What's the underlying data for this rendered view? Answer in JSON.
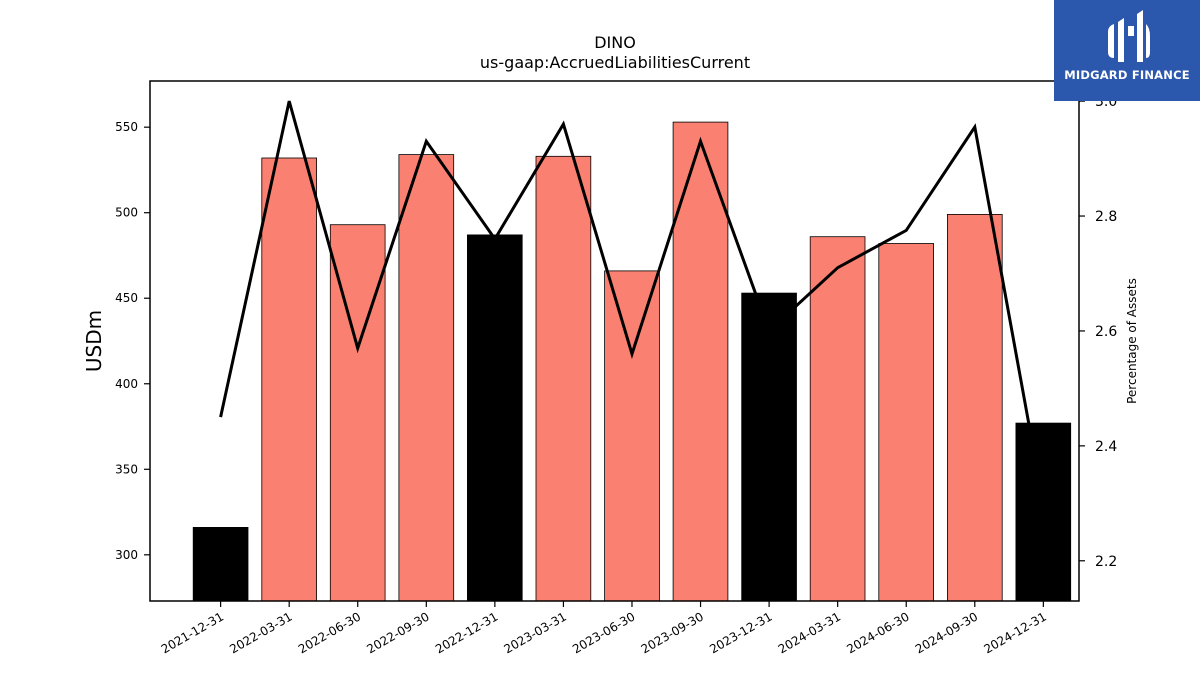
{
  "chart_data": {
    "type": "bar",
    "title": "DINO",
    "subtitle": "us-gaap:AccruedLiabilitiesCurrent",
    "ylabel": "USDm",
    "y2label": "Percentage of Assets",
    "categories": [
      "2021-12-31",
      "2022-03-31",
      "2022-06-30",
      "2022-09-30",
      "2022-12-31",
      "2023-03-31",
      "2023-06-30",
      "2023-09-30",
      "2023-12-31",
      "2024-03-31",
      "2024-06-30",
      "2024-09-30",
      "2024-12-31"
    ],
    "series": [
      {
        "values": [
          316,
          532,
          493,
          534,
          487,
          533,
          466,
          553,
          453,
          486,
          482,
          499,
          377
        ],
        "bar_colors": [
          "#000000",
          "#fa8072",
          "#fa8072",
          "#fa8072",
          "#000000",
          "#fa8072",
          "#fa8072",
          "#fa8072",
          "#000000",
          "#fa8072",
          "#fa8072",
          "#fa8072",
          "#000000"
        ],
        "axis": "left"
      },
      {
        "values": [
          2.45,
          3.0,
          2.57,
          2.93,
          2.76,
          2.96,
          2.56,
          2.93,
          2.6,
          2.71,
          2.775,
          2.955,
          2.3
        ],
        "type": "line",
        "color": "#000000",
        "axis": "right"
      }
    ],
    "ylim": [
      273,
      577
    ],
    "y2lim": [
      2.13,
      3.035
    ],
    "yticks": [
      300,
      350,
      400,
      450,
      500,
      550
    ],
    "y2ticks": [
      2.2,
      2.4,
      2.6,
      2.8,
      3.0
    ],
    "grid": false
  },
  "logo": {
    "text": "MIDGARD FINANCE",
    "color": "#2b57ad"
  }
}
